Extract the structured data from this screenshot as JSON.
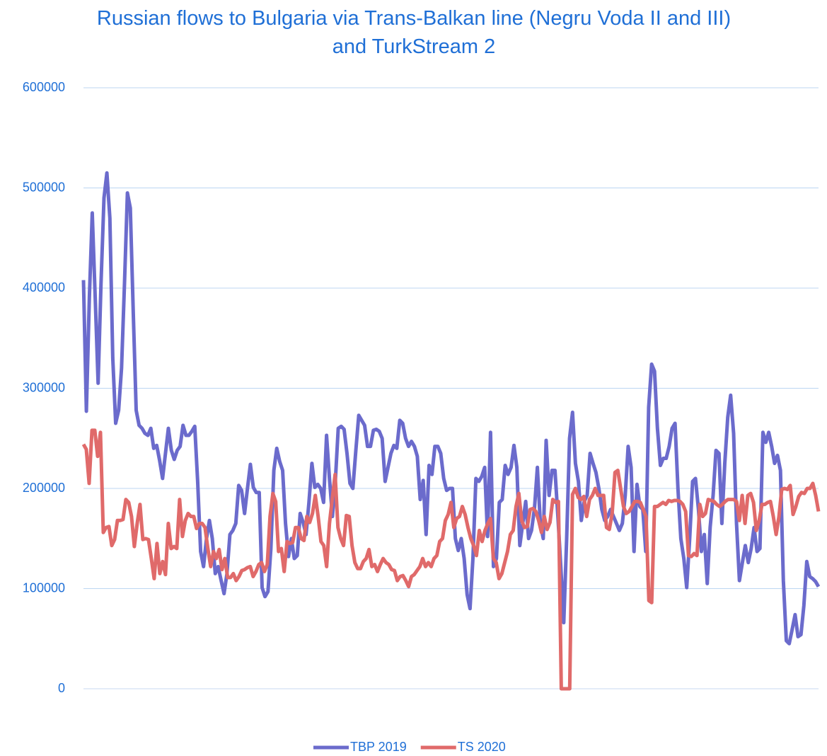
{
  "chart_data": {
    "type": "line",
    "title": "Russian flows to Bulgaria via Trans-Balkan line (Negru Voda II and III) and TurkStream 2",
    "ylim": [
      0,
      600000
    ],
    "yticks": [
      0,
      100000,
      200000,
      300000,
      400000,
      500000,
      600000
    ],
    "grid": true,
    "legend": "bottom",
    "series": [
      {
        "name": "TBP 2019",
        "color": "#6b6bcc",
        "values": [
          408000,
          277000,
          390000,
          475000,
          390000,
          305000,
          405000,
          490000,
          515000,
          470000,
          330000,
          265000,
          278000,
          320000,
          405000,
          495000,
          480000,
          375000,
          278000,
          263000,
          260000,
          255000,
          253000,
          260000,
          240000,
          243000,
          228000,
          210000,
          235000,
          260000,
          238000,
          229000,
          238000,
          242000,
          263000,
          253000,
          253000,
          257000,
          262000,
          207000,
          137000,
          122000,
          150000,
          168000,
          150000,
          115000,
          122000,
          108000,
          95000,
          115000,
          154000,
          158000,
          165000,
          203000,
          198000,
          175000,
          200000,
          224000,
          201000,
          196000,
          196000,
          101000,
          92000,
          97000,
          140000,
          218000,
          240000,
          227000,
          218000,
          165000,
          132000,
          150000,
          130000,
          133000,
          175000,
          166000,
          154000,
          186000,
          225000,
          201000,
          204000,
          200000,
          186000,
          253000,
          210000,
          172000,
          207000,
          260000,
          262000,
          259000,
          235000,
          205000,
          200000,
          238000,
          273000,
          268000,
          263000,
          242000,
          242000,
          258000,
          259000,
          257000,
          250000,
          207000,
          221000,
          235000,
          243000,
          240000,
          268000,
          265000,
          250000,
          242000,
          247000,
          242000,
          232000,
          189000,
          208000,
          154000,
          223000,
          214000,
          242000,
          242000,
          235000,
          210000,
          198000,
          200000,
          200000,
          150000,
          138000,
          150000,
          130000,
          94000,
          80000,
          130000,
          210000,
          207000,
          212000,
          221000,
          152000,
          256000,
          122000,
          130000,
          186000,
          189000,
          223000,
          214000,
          221000,
          243000,
          221000,
          143000,
          165000,
          187000,
          150000,
          158000,
          180000,
          221000,
          165000,
          150000,
          248000,
          193000,
          218000,
          218000,
          172000,
          122000,
          66000,
          150000,
          250000,
          276000,
          225000,
          207000,
          168000,
          187000,
          193000,
          235000,
          225000,
          216000,
          200000,
          179000,
          168000,
          172000,
          179000,
          172000,
          165000,
          158000,
          165000,
          193000,
          242000,
          221000,
          137000,
          204000,
          182000,
          179000,
          137000,
          281000,
          324000,
          317000,
          260000,
          223000,
          230000,
          230000,
          242000,
          260000,
          265000,
          200000,
          150000,
          130000,
          101000,
          150000,
          207000,
          210000,
          179000,
          137000,
          154000,
          105000,
          161000,
          193000,
          238000,
          235000,
          165000,
          225000,
          271000,
          293000,
          255000,
          165000,
          108000,
          126000,
          143000,
          126000,
          140000,
          161000,
          137000,
          140000,
          256000,
          246000,
          256000,
          242000,
          225000,
          233000,
          218000,
          108000,
          48000,
          45000,
          59000,
          74000,
          52000,
          54000,
          83000,
          127000,
          112000,
          110000,
          107000,
          102000
        ]
      },
      {
        "name": "TS 2020",
        "color": "#e06a6a",
        "values": [
          244000,
          239000,
          205000,
          258000,
          258000,
          232000,
          256000,
          156000,
          161000,
          162000,
          143000,
          149000,
          168000,
          168000,
          169000,
          189000,
          186000,
          172000,
          142000,
          165000,
          184000,
          149000,
          150000,
          149000,
          130000,
          110000,
          145000,
          115000,
          127000,
          114000,
          165000,
          140000,
          142000,
          140000,
          189000,
          152000,
          168000,
          175000,
          172000,
          172000,
          160000,
          165000,
          165000,
          161000,
          140000,
          122000,
          137000,
          130000,
          139000,
          119000,
          130000,
          111000,
          111000,
          115000,
          108000,
          112000,
          118000,
          119000,
          121000,
          122000,
          112000,
          117000,
          124000,
          126000,
          117000,
          124000,
          172000,
          195000,
          187000,
          137000,
          140000,
          117000,
          147000,
          145000,
          146000,
          161000,
          161000,
          150000,
          148000,
          172000,
          166000,
          175000,
          193000,
          172000,
          147000,
          143000,
          122000,
          165000,
          190000,
          214000,
          161000,
          150000,
          143000,
          173000,
          172000,
          143000,
          126000,
          120000,
          120000,
          127000,
          130000,
          139000,
          122000,
          124000,
          117000,
          124000,
          130000,
          126000,
          124000,
          119000,
          118000,
          108000,
          112000,
          113000,
          108000,
          102000,
          112000,
          114000,
          118000,
          122000,
          130000,
          122000,
          126000,
          122000,
          130000,
          133000,
          147000,
          150000,
          168000,
          174000,
          186000,
          161000,
          170000,
          172000,
          182000,
          174000,
          161000,
          150000,
          143000,
          133000,
          158000,
          147000,
          158000,
          165000,
          170000,
          130000,
          126000,
          110000,
          115000,
          126000,
          137000,
          154000,
          158000,
          182000,
          195000,
          168000,
          161000,
          162000,
          179000,
          180000,
          177000,
          168000,
          156000,
          172000,
          159000,
          166000,
          189000,
          186000,
          187000,
          0,
          0,
          0,
          0,
          194000,
          200000,
          191000,
          189000,
          192000,
          172000,
          189000,
          193000,
          200000,
          193000,
          193000,
          193000,
          161000,
          159000,
          175000,
          216000,
          218000,
          200000,
          182000,
          175000,
          177000,
          182000,
          187000,
          187000,
          186000,
          179000,
          172000,
          88000,
          86000,
          182000,
          182000,
          184000,
          186000,
          184000,
          188000,
          187000,
          188000,
          188000,
          187000,
          184000,
          177000,
          133000,
          132000,
          135000,
          133000,
          184000,
          172000,
          175000,
          189000,
          188000,
          187000,
          184000,
          182000,
          184000,
          187000,
          189000,
          189000,
          189000,
          187000,
          168000,
          193000,
          165000,
          193000,
          195000,
          186000,
          158000,
          168000,
          184000,
          184000,
          186000,
          187000,
          172000,
          154000,
          172000,
          199000,
          200000,
          199000,
          203000,
          174000,
          182000,
          192000,
          196000,
          195000,
          200000,
          200000,
          205000,
          193000,
          177000
        ]
      }
    ]
  }
}
